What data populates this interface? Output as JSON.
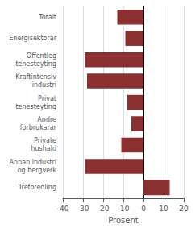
{
  "chart_data": {
    "type": "bar",
    "orientation": "horizontal",
    "categories": [
      "Totalt",
      "Energisektorar",
      "Offentleg\ntenesteyting",
      "Kraftintensiv\nindustri",
      "Privat\ntenesteyting",
      "Andre\nforbrukarar",
      "Private\nhushald",
      "Annan industri\nog bergverk",
      "Treforedling"
    ],
    "values": [
      -13,
      -9,
      -29,
      -28,
      -8,
      -6,
      -11,
      -29,
      13
    ],
    "color": "#8B3030",
    "xlabel": "Prosent",
    "xlim": [
      -40,
      20
    ],
    "xticks": [
      -40,
      -30,
      -20,
      -10,
      0,
      10,
      20
    ],
    "grid": true
  }
}
